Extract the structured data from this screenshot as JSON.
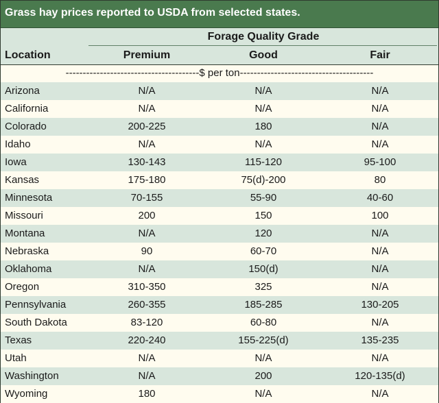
{
  "title": "Grass hay prices reported to USDA from selected states.",
  "group_header": "Forage Quality Grade",
  "columns": {
    "location": "Location",
    "premium": "Premium",
    "good": "Good",
    "fair": "Fair"
  },
  "unit_label": "---------------------------------------$ per ton---------------------------------------",
  "rows": [
    {
      "location": "Arizona",
      "premium": "N/A",
      "good": "N/A",
      "fair": "N/A"
    },
    {
      "location": "California",
      "premium": "N/A",
      "good": "N/A",
      "fair": "N/A"
    },
    {
      "location": "Colorado",
      "premium": "200-225",
      "good": "180",
      "fair": "N/A"
    },
    {
      "location": "Idaho",
      "premium": "N/A",
      "good": "N/A",
      "fair": "N/A"
    },
    {
      "location": "Iowa",
      "premium": "130-143",
      "good": "115-120",
      "fair": "95-100"
    },
    {
      "location": "Kansas",
      "premium": "175-180",
      "good": "75(d)-200",
      "fair": "80"
    },
    {
      "location": "Minnesota",
      "premium": "70-155",
      "good": "55-90",
      "fair": "40-60"
    },
    {
      "location": "Missouri",
      "premium": "200",
      "good": "150",
      "fair": "100"
    },
    {
      "location": "Montana",
      "premium": "N/A",
      "good": "120",
      "fair": "N/A"
    },
    {
      "location": "Nebraska",
      "premium": "90",
      "good": "60-70",
      "fair": "N/A"
    },
    {
      "location": "Oklahoma",
      "premium": "N/A",
      "good": "150(d)",
      "fair": "N/A"
    },
    {
      "location": "Oregon",
      "premium": "310-350",
      "good": "325",
      "fair": "N/A"
    },
    {
      "location": "Pennsylvania",
      "premium": "260-355",
      "good": "185-285",
      "fair": "130-205"
    },
    {
      "location": "South Dakota",
      "premium": "83-120",
      "good": "60-80",
      "fair": "N/A"
    },
    {
      "location": "Texas",
      "premium": "220-240",
      "good": "155-225(d)",
      "fair": "135-235"
    },
    {
      "location": "Utah",
      "premium": "N/A",
      "good": "N/A",
      "fair": "N/A"
    },
    {
      "location": "Washington",
      "premium": "N/A",
      "good": "200",
      "fair": "120-135(d)"
    },
    {
      "location": "Wyoming",
      "premium": "180",
      "good": "N/A",
      "fair": "N/A"
    }
  ],
  "colors": {
    "title_bg": "#4a7a4e",
    "band_green": "#d8e6dc",
    "band_cream": "#fffcef"
  }
}
